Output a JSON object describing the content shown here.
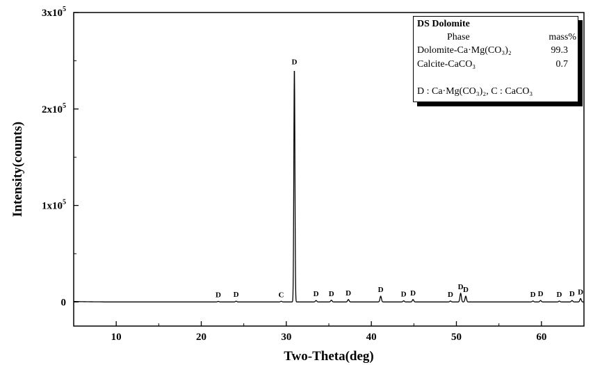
{
  "chart_data": {
    "type": "line",
    "title": "",
    "xlabel": "Two-Theta(deg)",
    "ylabel": "Intensity(counts)",
    "xlim": [
      5,
      65
    ],
    "ylim": [
      -25000,
      300000
    ],
    "x_ticks": [
      {
        "value": 10,
        "label": "10"
      },
      {
        "value": 20,
        "label": "20"
      },
      {
        "value": 30,
        "label": "30"
      },
      {
        "value": 40,
        "label": "40"
      },
      {
        "value": 50,
        "label": "50"
      },
      {
        "value": 60,
        "label": "60"
      }
    ],
    "y_ticks": [
      {
        "value": 0,
        "base": "0",
        "exp": ""
      },
      {
        "value": 100000,
        "base": "1x10",
        "exp": "5"
      },
      {
        "value": 200000,
        "base": "2x10",
        "exp": "5"
      },
      {
        "value": 300000,
        "base": "3x10",
        "exp": "5"
      }
    ],
    "line_color": "#000000",
    "baseline": 0,
    "peaks": [
      {
        "x": 22.0,
        "y": 600,
        "label": "D"
      },
      {
        "x": 24.1,
        "y": 800,
        "label": "D"
      },
      {
        "x": 29.4,
        "y": 700,
        "label": "C"
      },
      {
        "x": 30.95,
        "y": 242000,
        "label": "D"
      },
      {
        "x": 33.5,
        "y": 1500,
        "label": "D"
      },
      {
        "x": 35.3,
        "y": 1800,
        "label": "D"
      },
      {
        "x": 37.3,
        "y": 2500,
        "label": "D"
      },
      {
        "x": 41.1,
        "y": 6000,
        "label": "D"
      },
      {
        "x": 43.8,
        "y": 1200,
        "label": "D"
      },
      {
        "x": 44.9,
        "y": 2500,
        "label": "D"
      },
      {
        "x": 49.3,
        "y": 1000,
        "label": "D"
      },
      {
        "x": 50.5,
        "y": 9000,
        "label": "D"
      },
      {
        "x": 51.1,
        "y": 6000,
        "label": "D"
      },
      {
        "x": 59.0,
        "y": 1000,
        "label": "D"
      },
      {
        "x": 59.9,
        "y": 1500,
        "label": "D"
      },
      {
        "x": 62.1,
        "y": 900,
        "label": "D"
      },
      {
        "x": 63.6,
        "y": 1500,
        "label": "D"
      },
      {
        "x": 64.6,
        "y": 3500,
        "label": "D"
      }
    ],
    "legend": {
      "title": "DS Dolomite",
      "header_phase": "Phase",
      "header_mass": "mass%",
      "rows": [
        {
          "phase": "Dolomite-Ca·Mg(CO₃)₂",
          "mass": "99.3"
        },
        {
          "phase": "Calcite-CaCO₃",
          "mass": "0.7"
        }
      ],
      "note": "D : Ca·Mg(CO₃)₂, C : CaCO₃",
      "placement": "top-right"
    }
  }
}
